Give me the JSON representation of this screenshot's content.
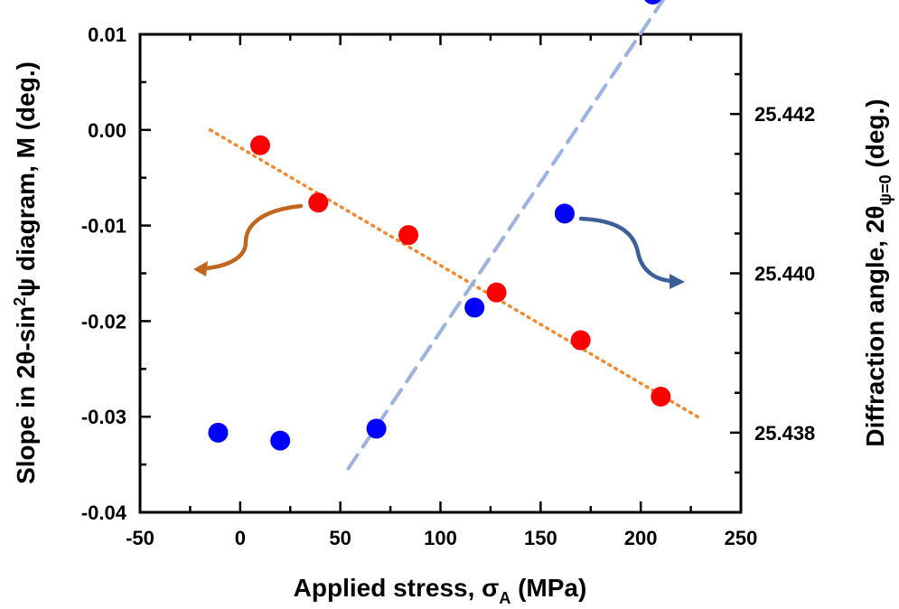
{
  "chart_data": {
    "type": "scatter",
    "x_axis": {
      "label": "Applied stress, σ",
      "label_subscript": "A",
      "label_suffix": " (MPa)",
      "range": [
        -50,
        250
      ],
      "ticks": [
        "-50",
        "0",
        "50",
        "100",
        "150",
        "200",
        "250"
      ]
    },
    "y_left": {
      "label_part1": "Slope in 2θ-sin",
      "label_superscript": "2",
      "label_part2": "ψ diagram, M (deg.)",
      "range": [
        -0.04,
        0.01
      ],
      "ticks": [
        "-0.04",
        "-0.03",
        "-0.02",
        "-0.01",
        "0.00",
        "0.01"
      ]
    },
    "y_right": {
      "label_part1": "Diffraction angle, 2θ",
      "label_subscript": "ψ=0",
      "label_part2": " (deg.)",
      "range": [
        25.437,
        25.443
      ],
      "ticks": [
        "25.438",
        "25.440",
        "25.442"
      ]
    },
    "series": [
      {
        "axis": "left",
        "color": "#ff0000",
        "points": [
          [
            10,
            -0.0016
          ],
          [
            39,
            -0.0076
          ],
          [
            84,
            -0.011
          ],
          [
            128,
            -0.017
          ],
          [
            170,
            -0.022
          ],
          [
            210,
            -0.0279
          ]
        ],
        "fit": {
          "x": [
            -15,
            230
          ],
          "y": [
            0.0,
            -0.0302
          ],
          "style": "dotted",
          "color": "#f08a30"
        }
      },
      {
        "axis": "right",
        "color": "#0000ff",
        "points": [
          [
            -11,
            25.438
          ],
          [
            20,
            25.4379
          ],
          [
            68,
            25.43805
          ],
          [
            117,
            25.43957
          ],
          [
            162,
            25.44075
          ],
          [
            206,
            25.4435
          ]
        ],
        "fit": {
          "x": [
            54,
            221
          ],
          "y": [
            25.43755,
            25.4438
          ],
          "style": "dashed",
          "color": "#9ab3e0"
        }
      }
    ],
    "arrows": [
      {
        "color": "#c0661f",
        "direction": "left"
      },
      {
        "color": "#3c5f9a",
        "direction": "right"
      }
    ],
    "grid": false,
    "legend": "none"
  }
}
